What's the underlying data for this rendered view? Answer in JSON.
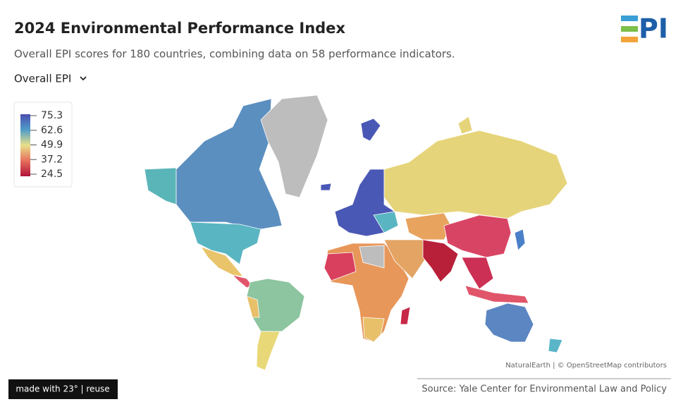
{
  "header": {
    "title": "2024 Environmental Performance Index",
    "subtitle": "Overall EPI scores for 180 countries, combining data on 58 performance indicators.",
    "dropdown": "Overall EPI",
    "logo_text": "PI"
  },
  "legend": {
    "ticks": [
      75.3,
      62.6,
      49.9,
      37.2,
      24.5
    ]
  },
  "map": {
    "attribution": "NaturalEarth | © OpenStreetMap contributors"
  },
  "footer": {
    "badge": "made with 23° | reuse",
    "source": "Source: Yale Center for Environmental Law and Policy"
  }
}
